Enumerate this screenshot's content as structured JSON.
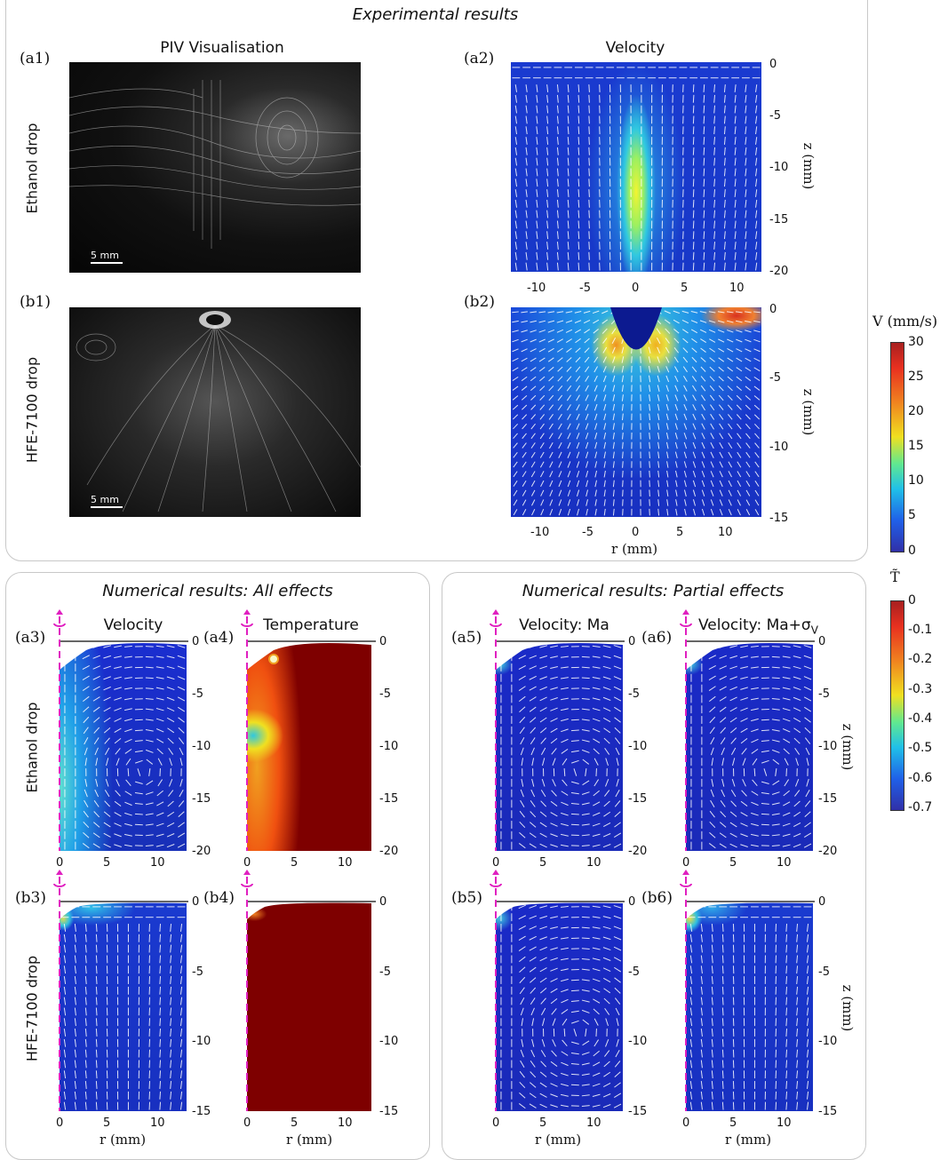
{
  "sections": {
    "experimental": "Experimental results",
    "numerical_all": "Numerical results: All effects",
    "numerical_partial": "Numerical results: Partial effects"
  },
  "rows": {
    "ethanol": "Ethanol drop",
    "hfe": "HFE-7100 drop"
  },
  "panels": {
    "a1": "(a1)",
    "b1": "(b1)",
    "a2": "(a2)",
    "b2": "(b2)",
    "a3": "(a3)",
    "a4": "(a4)",
    "a5": "(a5)",
    "a6": "(a6)",
    "b3": "(b3)",
    "b4": "(b4)",
    "b5": "(b5)",
    "b6": "(b6)"
  },
  "titles": {
    "piv": "PIV Visualisation",
    "velocity": "Velocity",
    "temperature": "Temperature",
    "vel_ma": "Velocity: Ma",
    "vel_ma_sigma": "Velocity: Ma+σ",
    "vel_ma_sigma_sub": "V"
  },
  "scalebar": "5 mm",
  "axes": {
    "r_label": "r (mm)",
    "z_label": "z (mm)",
    "exp_a_x_ticks": [
      "-10",
      "-5",
      "0",
      "5",
      "10"
    ],
    "exp_a_z_ticks": [
      "0",
      "-5",
      "-10",
      "-15",
      "-20"
    ],
    "exp_b_x_ticks": [
      "-10",
      "-5",
      "0",
      "5",
      "10"
    ],
    "exp_b_z_ticks": [
      "0",
      "-5",
      "-10",
      "-15"
    ],
    "num_x_ticks": [
      "0",
      "5",
      "10"
    ],
    "num_a_z_ticks": [
      "0",
      "-5",
      "-10",
      "-15",
      "-20"
    ],
    "num_b_z_ticks": [
      "0",
      "-5",
      "-10",
      "-15"
    ]
  },
  "colorbars": {
    "velocity": {
      "title": "V (mm/s)",
      "ticks": [
        "30",
        "25",
        "20",
        "15",
        "10",
        "5",
        "0"
      ]
    },
    "temperature": {
      "title": "T̃",
      "ticks": [
        "0",
        "-0.1",
        "-0.2",
        "-0.3",
        "-0.4",
        "-0.5",
        "-0.6",
        "-0.7"
      ]
    }
  },
  "colors": {
    "jet_low": "#1a1aa8",
    "jet_high": "#b22222",
    "axis_marker": "#e020c0",
    "temp_field": "#7e0000"
  }
}
